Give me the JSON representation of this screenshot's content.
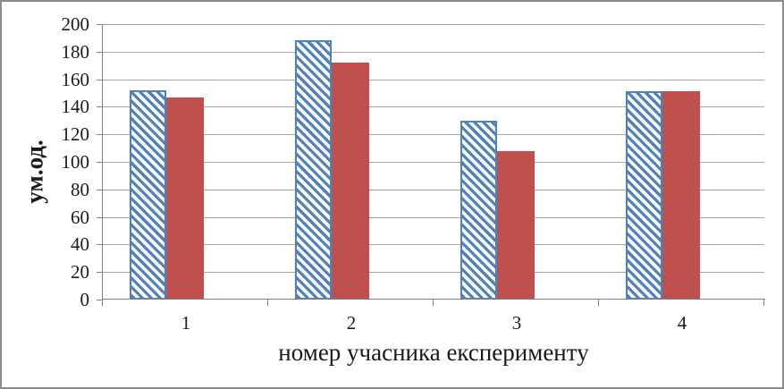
{
  "frame": {
    "border_color": "#8C8C8C",
    "background_color": "#FFFFFF"
  },
  "chart_data": {
    "type": "bar",
    "title": "",
    "xlabel": "номер учасника експерименту",
    "ylabel": "ум.од.",
    "categories": [
      "1",
      "2",
      "3",
      "4"
    ],
    "series": [
      {
        "name": "hatched-blue-series",
        "style": "diagonal-hatch",
        "color": "#4F81BD",
        "values": [
          152,
          188,
          130,
          151
        ]
      },
      {
        "name": "solid-red-series",
        "style": "solid",
        "color": "#C0504D",
        "values": [
          147,
          172,
          108,
          151
        ]
      }
    ],
    "ylim": [
      0,
      200
    ],
    "ytick_step": 20,
    "yticks": [
      0,
      20,
      40,
      60,
      80,
      100,
      120,
      140,
      160,
      180,
      200
    ],
    "grid": true,
    "legend": false,
    "gridline_color": "#A6A6A6",
    "axis_color": "#808080"
  }
}
